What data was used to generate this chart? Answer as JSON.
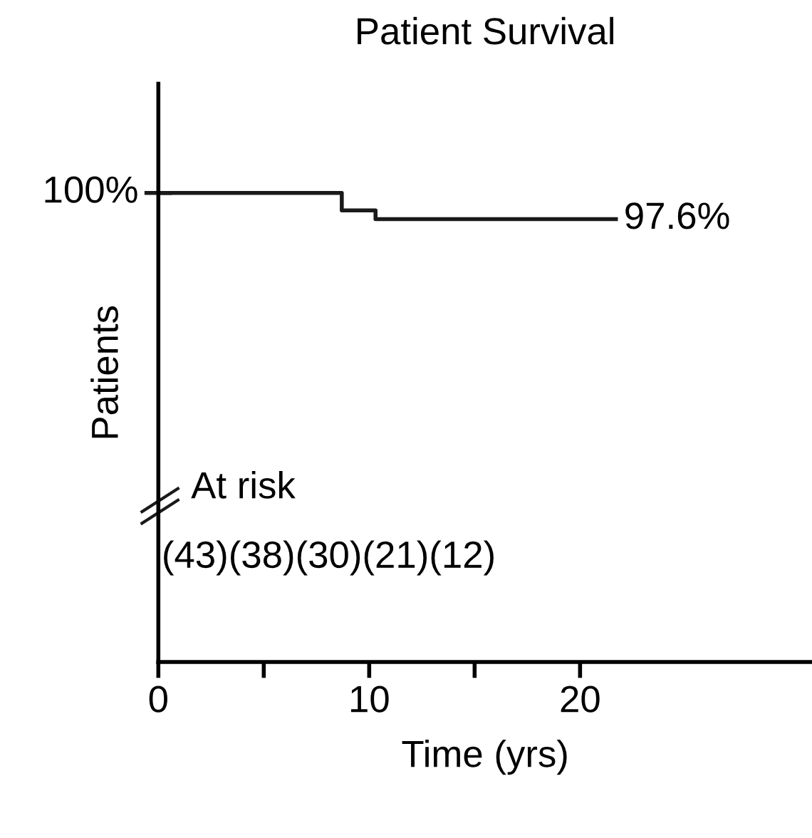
{
  "chart_data": {
    "type": "step",
    "title": "Patient Survival",
    "xlabel": "Time (yrs)",
    "ylabel": "Patients",
    "x": [
      0,
      8.7,
      10.3,
      21.7
    ],
    "series": [
      {
        "color": "#1a1a1a",
        "values": [
          100,
          98.4,
          97.6,
          97.6
        ],
        "value_labels": [
          "100%",
          null,
          null,
          "97.6%"
        ]
      }
    ],
    "xlim": [
      0,
      31
    ],
    "xticks": [
      0,
      {
        "value": 5,
        "label": null
      },
      10,
      {
        "value": 15,
        "label": null
      },
      20
    ],
    "ylim": [
      57,
      110
    ],
    "annotations": [
      "At risk",
      "(43)(38)(30)(21)(12)"
    ],
    "grid": false,
    "legend": false
  }
}
